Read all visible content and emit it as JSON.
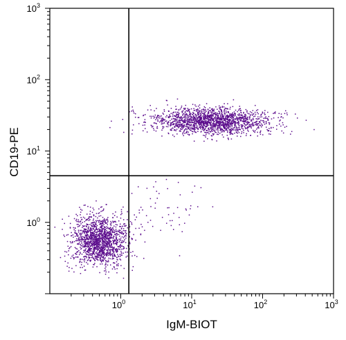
{
  "chart_data": {
    "type": "scatter",
    "title": "",
    "xlabel": "IgM-BIOT",
    "ylabel": "CD19-PE",
    "xscale": "log",
    "yscale": "log",
    "xlim": [
      0.1,
      1000
    ],
    "ylim": [
      0.1,
      1000
    ],
    "x_tick_labels": [
      {
        "value": 1,
        "base": "10",
        "exp": "0"
      },
      {
        "value": 10,
        "base": "10",
        "exp": "1"
      },
      {
        "value": 100,
        "base": "10",
        "exp": "2"
      },
      {
        "value": 1000,
        "base": "10",
        "exp": "3"
      }
    ],
    "y_tick_labels": [
      {
        "value": 1,
        "base": "10",
        "exp": "0"
      },
      {
        "value": 10,
        "base": "10",
        "exp": "1"
      },
      {
        "value": 100,
        "base": "10",
        "exp": "2"
      },
      {
        "value": 1000,
        "base": "10",
        "exp": "3"
      }
    ],
    "quadrant_gates": {
      "x": 1.3,
      "y": 4.5
    },
    "grid": false,
    "point_color": "#5b0c8c",
    "populations": [
      {
        "center_x": 0.5,
        "center_y": 0.55,
        "log_spread_x": 0.2,
        "log_spread_y": 0.18,
        "count": 1500
      },
      {
        "center_x": 20,
        "center_y": 26,
        "log_spread_x": 0.42,
        "log_spread_y": 0.09,
        "count": 1700
      },
      {
        "center_x": 4,
        "center_y": 1.5,
        "log_spread_x": 0.3,
        "log_spread_y": 0.3,
        "count": 60
      }
    ]
  }
}
